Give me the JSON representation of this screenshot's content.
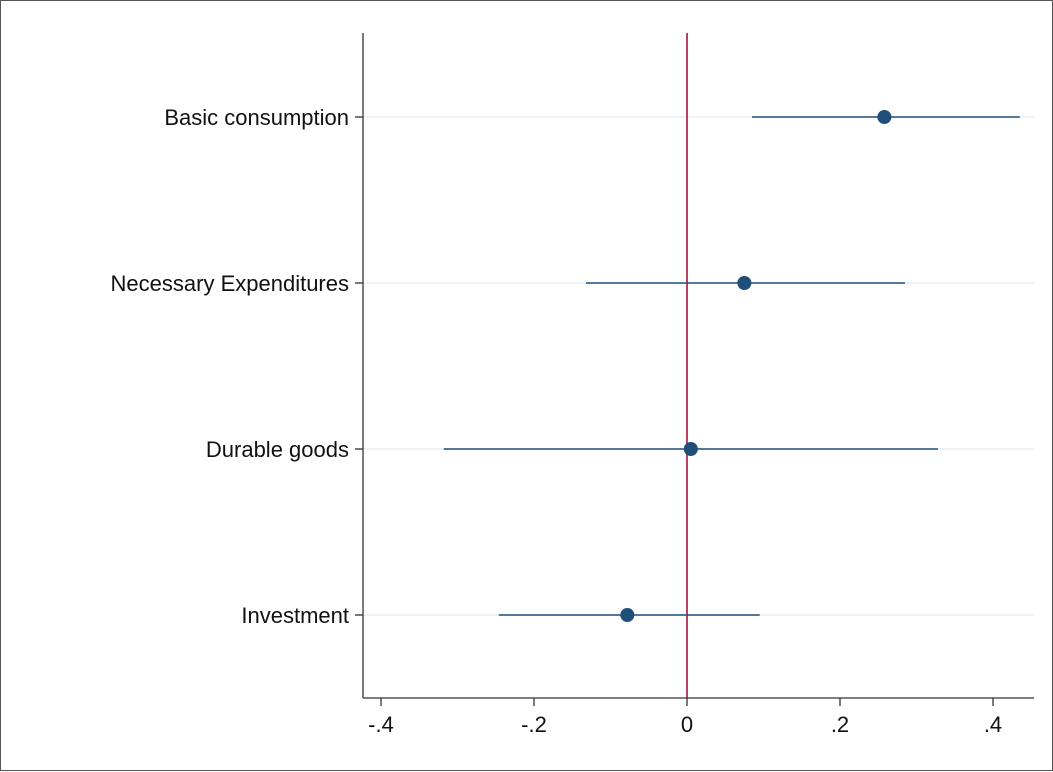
{
  "chart_data": {
    "type": "scatter",
    "subtype": "coefficient-plot",
    "categories": [
      "Basic consumption",
      "Necessary Expenditures",
      "Durable goods",
      "Investment"
    ],
    "estimates": [
      0.258,
      0.075,
      0.005,
      -0.078
    ],
    "ci_lower": [
      0.085,
      -0.132,
      -0.318,
      -0.246
    ],
    "ci_upper": [
      0.435,
      0.285,
      0.328,
      0.095
    ],
    "x_ticks": [
      -0.4,
      -0.2,
      0,
      0.2,
      0.4
    ],
    "x_tick_labels": [
      "-.4",
      "-.2",
      "0",
      ".2",
      ".4"
    ],
    "xlim": [
      -0.42,
      0.45
    ],
    "reference_line": 0,
    "title": "",
    "xlabel": "",
    "ylabel": "",
    "grid": "horizontal",
    "legend": "none"
  },
  "colors": {
    "marker": "#1f4e79",
    "ci_line": "#1f4e79",
    "reference_line": "#a6133b",
    "grid": "#e6eef2",
    "axis": "#333333"
  }
}
